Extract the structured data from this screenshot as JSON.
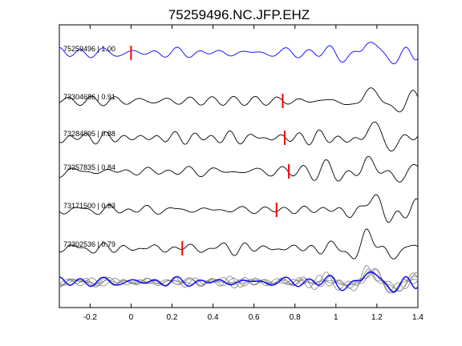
{
  "chart_data": {
    "type": "line",
    "title": "75259496.NC.JFP.EHZ",
    "xlabel": "",
    "ylabel": "",
    "xlim": [
      -0.35,
      1.4
    ],
    "xticks": [
      -0.2,
      0,
      0.2,
      0.4,
      0.6,
      0.8,
      1,
      1.2,
      1.4
    ],
    "xtick_labels": [
      "-0.2",
      "0",
      "0.2",
      "0.4",
      "0.6",
      "0.8",
      "1",
      "1.2",
      "1.4"
    ],
    "grid": false,
    "legend": "none",
    "traces": [
      {
        "id": "75259496",
        "cc": "1.00",
        "label": "75259496 | 1.00",
        "pick": 0.0,
        "color": "#0000ff",
        "seed": 1
      },
      {
        "id": "73304686",
        "cc": "0.91",
        "label": "73304686 | 0.91",
        "pick": 0.74,
        "color": "#000000",
        "seed": 2
      },
      {
        "id": "73284895",
        "cc": "0.88",
        "label": "73284895 | 0.88",
        "pick": 0.75,
        "color": "#000000",
        "seed": 3
      },
      {
        "id": "73257835",
        "cc": "0.84",
        "label": "73257835 | 0.84",
        "pick": 0.77,
        "color": "#000000",
        "seed": 4
      },
      {
        "id": "73171500",
        "cc": "0.83",
        "label": "73171500 | 0.83",
        "pick": 0.71,
        "color": "#000000",
        "seed": 5
      },
      {
        "id": "73302536",
        "cc": "0.79",
        "label": "73302536 | 0.79",
        "pick": 0.25,
        "color": "#000000",
        "seed": 6
      }
    ],
    "stack": {
      "description_visible": false,
      "overlay_color": "#808080",
      "main_color": "#0000ff"
    },
    "pick_color": "#ff0000"
  }
}
